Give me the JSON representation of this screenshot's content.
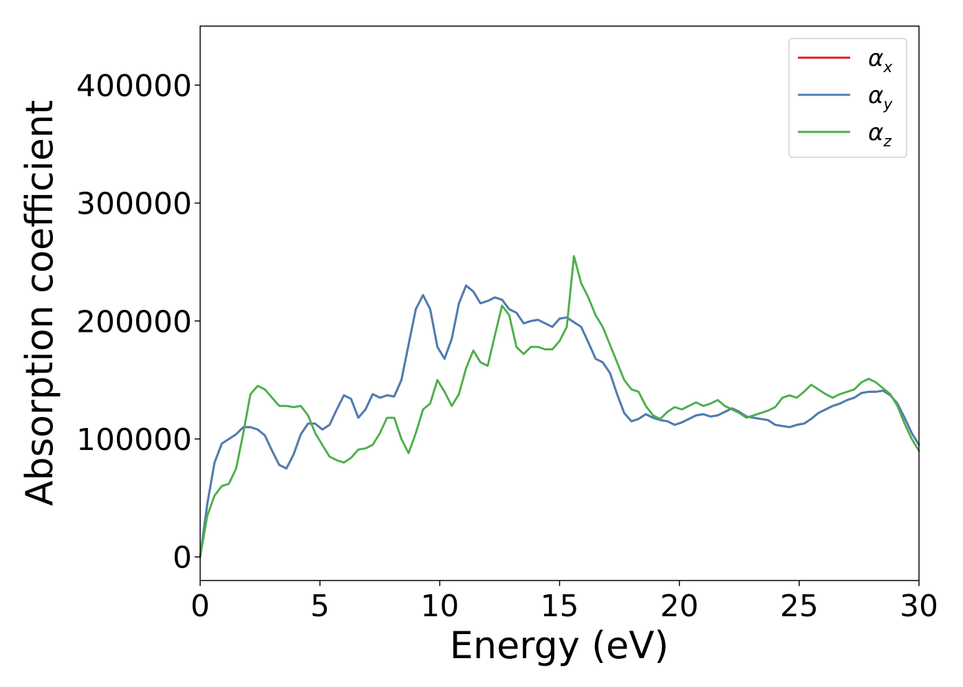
{
  "chart_data": {
    "type": "line",
    "xlabel": "Energy (eV)",
    "ylabel": "Absorption coefficient",
    "xlim": [
      0,
      30
    ],
    "ylim": [
      -20000,
      450000
    ],
    "xticks": [
      "0",
      "5",
      "10",
      "15",
      "20",
      "25",
      "30"
    ],
    "yticks": [
      "0",
      "100000",
      "200000",
      "300000",
      "400000"
    ],
    "grid": false,
    "legend_position": "top-right",
    "series": [
      {
        "name": "αx",
        "base": "α",
        "sub": "x",
        "color": "#e41a1c",
        "x": [
          0,
          0.3,
          0.6,
          0.9,
          1.2,
          1.5,
          1.8,
          2.1,
          2.4,
          2.7,
          3.0,
          3.3,
          3.6,
          3.9,
          4.2,
          4.5,
          4.8,
          5.1,
          5.4,
          5.7,
          6.0,
          6.3,
          6.6,
          6.9,
          7.2,
          7.5,
          7.8,
          8.1,
          8.4,
          8.7,
          9.0,
          9.3,
          9.6,
          9.9,
          10.2,
          10.5,
          10.8,
          11.1,
          11.4,
          11.7,
          12.0,
          12.3,
          12.6,
          12.9,
          13.2,
          13.5,
          13.8,
          14.1,
          14.4,
          14.7,
          15.0,
          15.3,
          15.6,
          15.9,
          16.2,
          16.5,
          16.8,
          17.1,
          17.4,
          17.7,
          18.0,
          18.3,
          18.6,
          18.9,
          19.2,
          19.5,
          19.8,
          20.1,
          20.4,
          20.7,
          21.0,
          21.3,
          21.6,
          21.9,
          22.2,
          22.5,
          22.8,
          23.1,
          23.4,
          23.7,
          24.0,
          24.3,
          24.6,
          24.9,
          25.2,
          25.5,
          25.8,
          26.1,
          26.4,
          26.7,
          27.0,
          27.3,
          27.6,
          27.9,
          28.2,
          28.5,
          28.8,
          29.1,
          29.4,
          29.7,
          30.0
        ],
        "y": [
          0,
          45000,
          80000,
          96000,
          100000,
          104000,
          110000,
          110000,
          108000,
          103000,
          90000,
          78000,
          75000,
          87000,
          104000,
          113000,
          113000,
          108000,
          112000,
          125000,
          137000,
          134000,
          118000,
          125000,
          138000,
          135000,
          137000,
          136000,
          150000,
          180000,
          210000,
          222000,
          210000,
          178000,
          168000,
          185000,
          215000,
          230000,
          225000,
          215000,
          217000,
          220000,
          218000,
          210000,
          207000,
          198000,
          200000,
          201000,
          198000,
          195000,
          202000,
          203000,
          199000,
          195000,
          182000,
          168000,
          165000,
          156000,
          138000,
          122000,
          115000,
          117000,
          121000,
          118000,
          116000,
          115000,
          112000,
          114000,
          117000,
          120000,
          121000,
          119000,
          120000,
          123000,
          126000,
          123000,
          119000,
          118000,
          117000,
          116000,
          112000,
          111000,
          110000,
          112000,
          113000,
          117000,
          122000,
          125000,
          128000,
          130000,
          133000,
          135000,
          139000,
          140000,
          140000,
          141000,
          137000,
          130000,
          118000,
          105000,
          95000
        ]
      },
      {
        "name": "αy",
        "base": "α",
        "sub": "y",
        "color": "#4a7fb5",
        "x": [
          0,
          0.3,
          0.6,
          0.9,
          1.2,
          1.5,
          1.8,
          2.1,
          2.4,
          2.7,
          3.0,
          3.3,
          3.6,
          3.9,
          4.2,
          4.5,
          4.8,
          5.1,
          5.4,
          5.7,
          6.0,
          6.3,
          6.6,
          6.9,
          7.2,
          7.5,
          7.8,
          8.1,
          8.4,
          8.7,
          9.0,
          9.3,
          9.6,
          9.9,
          10.2,
          10.5,
          10.8,
          11.1,
          11.4,
          11.7,
          12.0,
          12.3,
          12.6,
          12.9,
          13.2,
          13.5,
          13.8,
          14.1,
          14.4,
          14.7,
          15.0,
          15.3,
          15.6,
          15.9,
          16.2,
          16.5,
          16.8,
          17.1,
          17.4,
          17.7,
          18.0,
          18.3,
          18.6,
          18.9,
          19.2,
          19.5,
          19.8,
          20.1,
          20.4,
          20.7,
          21.0,
          21.3,
          21.6,
          21.9,
          22.2,
          22.5,
          22.8,
          23.1,
          23.4,
          23.7,
          24.0,
          24.3,
          24.6,
          24.9,
          25.2,
          25.5,
          25.8,
          26.1,
          26.4,
          26.7,
          27.0,
          27.3,
          27.6,
          27.9,
          28.2,
          28.5,
          28.8,
          29.1,
          29.4,
          29.7,
          30.0
        ],
        "y": [
          0,
          45000,
          80000,
          96000,
          100000,
          104000,
          110000,
          110000,
          108000,
          103000,
          90000,
          78000,
          75000,
          87000,
          104000,
          113000,
          113000,
          108000,
          112000,
          125000,
          137000,
          134000,
          118000,
          125000,
          138000,
          135000,
          137000,
          136000,
          150000,
          180000,
          210000,
          222000,
          210000,
          178000,
          168000,
          185000,
          215000,
          230000,
          225000,
          215000,
          217000,
          220000,
          218000,
          210000,
          207000,
          198000,
          200000,
          201000,
          198000,
          195000,
          202000,
          203000,
          199000,
          195000,
          182000,
          168000,
          165000,
          156000,
          138000,
          122000,
          115000,
          117000,
          121000,
          118000,
          116000,
          115000,
          112000,
          114000,
          117000,
          120000,
          121000,
          119000,
          120000,
          123000,
          126000,
          123000,
          119000,
          118000,
          117000,
          116000,
          112000,
          111000,
          110000,
          112000,
          113000,
          117000,
          122000,
          125000,
          128000,
          130000,
          133000,
          135000,
          139000,
          140000,
          140000,
          141000,
          137000,
          130000,
          118000,
          105000,
          95000
        ]
      },
      {
        "name": "αz",
        "base": "α",
        "sub": "z",
        "color": "#4daf4a",
        "x": [
          0,
          0.3,
          0.6,
          0.9,
          1.2,
          1.5,
          1.8,
          2.1,
          2.4,
          2.7,
          3.0,
          3.3,
          3.6,
          3.9,
          4.2,
          4.5,
          4.8,
          5.1,
          5.4,
          5.7,
          6.0,
          6.3,
          6.6,
          6.9,
          7.2,
          7.5,
          7.8,
          8.1,
          8.4,
          8.7,
          9.0,
          9.3,
          9.6,
          9.9,
          10.2,
          10.5,
          10.8,
          11.1,
          11.4,
          11.7,
          12.0,
          12.3,
          12.6,
          12.9,
          13.2,
          13.5,
          13.8,
          14.1,
          14.4,
          14.7,
          15.0,
          15.3,
          15.6,
          15.9,
          16.2,
          16.5,
          16.8,
          17.1,
          17.4,
          17.7,
          18.0,
          18.3,
          18.6,
          18.9,
          19.2,
          19.5,
          19.8,
          20.1,
          20.4,
          20.7,
          21.0,
          21.3,
          21.6,
          21.9,
          22.2,
          22.5,
          22.8,
          23.1,
          23.4,
          23.7,
          24.0,
          24.3,
          24.6,
          24.9,
          25.2,
          25.5,
          25.8,
          26.1,
          26.4,
          26.7,
          27.0,
          27.3,
          27.6,
          27.9,
          28.2,
          28.5,
          28.8,
          29.1,
          29.4,
          29.7,
          30.0
        ],
        "y": [
          0,
          35000,
          52000,
          60000,
          62000,
          75000,
          105000,
          138000,
          145000,
          142000,
          135000,
          128000,
          128000,
          127000,
          128000,
          120000,
          105000,
          95000,
          85000,
          82000,
          80000,
          84000,
          91000,
          92000,
          95000,
          105000,
          118000,
          118000,
          100000,
          88000,
          105000,
          125000,
          130000,
          150000,
          140000,
          128000,
          138000,
          160000,
          175000,
          165000,
          162000,
          188000,
          213000,
          205000,
          178000,
          172000,
          178000,
          178000,
          176000,
          176000,
          183000,
          195000,
          255000,
          232000,
          220000,
          205000,
          195000,
          180000,
          165000,
          150000,
          142000,
          140000,
          128000,
          120000,
          117000,
          123000,
          127000,
          125000,
          128000,
          131000,
          128000,
          130000,
          133000,
          128000,
          125000,
          122000,
          118000,
          120000,
          122000,
          124000,
          127000,
          135000,
          137000,
          135000,
          140000,
          146000,
          142000,
          138000,
          135000,
          138000,
          140000,
          142000,
          148000,
          151000,
          148000,
          143000,
          138000,
          128000,
          113000,
          100000,
          90000
        ]
      }
    ]
  }
}
